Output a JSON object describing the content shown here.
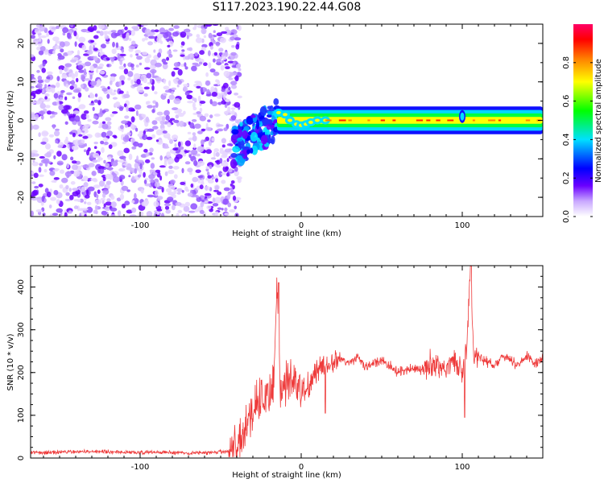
{
  "title": "S117.2023.190.22.44.G08",
  "chart_data": [
    {
      "type": "heatmap",
      "xlabel": "Height of straight line (km)",
      "ylabel": "Frequency (Hz)",
      "xlim": [
        -168,
        150
      ],
      "ylim": [
        -25,
        25
      ],
      "xticks": [
        -100,
        0,
        100
      ],
      "yticks": [
        -20,
        -10,
        0,
        10,
        20
      ],
      "colorbar": {
        "label": "Normalized spectral amplitude",
        "range": [
          0.0,
          1.0
        ],
        "ticks": [
          "0.0",
          "0.2",
          "0.4",
          "0.6",
          "0.8"
        ],
        "tick_values": [
          0.0,
          0.2,
          0.4,
          0.6,
          0.8
        ],
        "colormap": [
          "#ffffff",
          "#6a00ff",
          "#0000ff",
          "#00e0ff",
          "#00ff00",
          "#ffff00",
          "#ff8000",
          "#ff0000",
          "#ff0066"
        ]
      },
      "regions": [
        {
          "x_range": [
            -168,
            -42
          ],
          "freq_range": [
            -25,
            25
          ],
          "description_level": 0.05
        },
        {
          "x_range": [
            -42,
            -15
          ],
          "freq_center_from": -7,
          "freq_center_to": 0,
          "level": 0.3
        },
        {
          "x_range": [
            -15,
            150
          ],
          "freq_center": 0,
          "level": 0.85
        }
      ]
    },
    {
      "type": "line",
      "xlabel": "Height of straight line (km)",
      "ylabel": "SNR (10 * v/v)",
      "xlim": [
        -168,
        150
      ],
      "ylim": [
        0,
        450
      ],
      "xticks": [
        -100,
        0,
        100
      ],
      "yticks": [
        0,
        100,
        200,
        300,
        400
      ],
      "series_color": "#ee3a3a",
      "series": [
        {
          "x": [
            -168,
            -140,
            -110,
            -80,
            -60,
            -45,
            -40,
            -35,
            -30,
            -25,
            -20,
            -17,
            -15,
            -13,
            -10,
            -5,
            0,
            5,
            10,
            15,
            20,
            25,
            30,
            35,
            40,
            45,
            50,
            55,
            60,
            65,
            70,
            75,
            80,
            85,
            90,
            95,
            100,
            103,
            105,
            107,
            110,
            115,
            120,
            125,
            130,
            135,
            140,
            145,
            150
          ],
          "y": [
            12,
            15,
            14,
            13,
            12,
            15,
            25,
            60,
            110,
            150,
            140,
            190,
            410,
            130,
            170,
            190,
            150,
            170,
            210,
            220,
            225,
            230,
            220,
            235,
            215,
            220,
            225,
            215,
            200,
            205,
            210,
            205,
            220,
            215,
            210,
            230,
            200,
            260,
            450,
            230,
            240,
            225,
            215,
            235,
            230,
            215,
            240,
            220,
            235
          ]
        }
      ]
    }
  ]
}
